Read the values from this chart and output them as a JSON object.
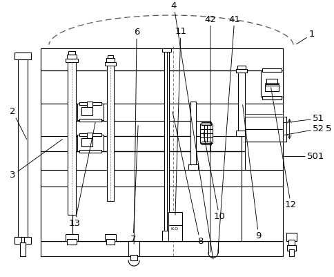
{
  "bg_color": "#ffffff",
  "line_color": "#000000",
  "lw": 0.8,
  "labels": [
    [
      "1",
      448,
      358,
      430,
      342,
      410,
      340
    ],
    [
      "2",
      22,
      282,
      75,
      240,
      75,
      240
    ],
    [
      "3",
      22,
      112,
      75,
      165,
      75,
      165
    ],
    [
      "4",
      252,
      394,
      296,
      378,
      296,
      378
    ],
    [
      "41",
      340,
      374,
      320,
      365,
      320,
      365
    ],
    [
      "42",
      300,
      374,
      302,
      365,
      302,
      365
    ],
    [
      "5",
      472,
      228,
      460,
      228,
      455,
      228
    ],
    [
      "51",
      462,
      210,
      450,
      213,
      445,
      213
    ],
    [
      "52",
      462,
      226,
      450,
      224,
      445,
      224
    ],
    [
      "501",
      455,
      265,
      385,
      255,
      375,
      255
    ],
    [
      "6",
      200,
      357,
      218,
      348,
      218,
      345
    ],
    [
      "7",
      192,
      52,
      215,
      80,
      215,
      80
    ],
    [
      "8",
      288,
      50,
      252,
      78,
      252,
      78
    ],
    [
      "9",
      370,
      60,
      355,
      115,
      355,
      115
    ],
    [
      "10",
      318,
      88,
      318,
      145,
      318,
      145
    ],
    [
      "11",
      262,
      358,
      250,
      345,
      250,
      345
    ],
    [
      "12",
      422,
      100,
      405,
      118,
      400,
      118
    ],
    [
      "13",
      108,
      72,
      158,
      185,
      158,
      185
    ]
  ]
}
